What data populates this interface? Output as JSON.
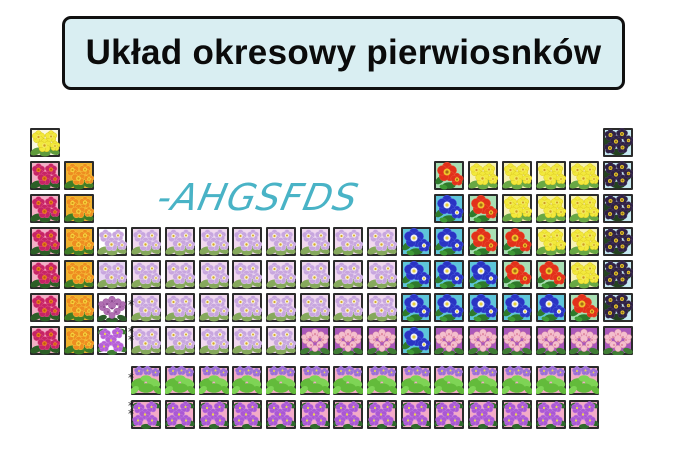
{
  "title": {
    "text": "Układ okresowy pierwiosnków",
    "bg_color": "#d9eef2",
    "border_color": "#101010"
  },
  "watermark": {
    "text": "-AHGSFDS",
    "color": "#49b3c6"
  },
  "flower_types": {
    "yellow_h": {
      "label": "yellow primrose on cream",
      "form": "primrose",
      "bg": "#fbf8df",
      "petal": "#f2e93c",
      "petal_edge": "#d9c41f",
      "center": "#f3e964",
      "center_dot": "#cf9b22",
      "leaf": "#5f9b3c"
    },
    "magenta": {
      "label": "magenta primrose on pink",
      "form": "primrose",
      "bg": "#f3b0c6",
      "petal": "#c62465",
      "petal_edge": "#e4508a",
      "center": "#ee7f1f",
      "center_dot": "#b85a0e",
      "leaf": "#2d5f27"
    },
    "orange": {
      "label": "orange primrose on amber",
      "form": "primrose",
      "bg": "#f0b12e",
      "petal": "#ee8d21",
      "petal_edge": "#f8c83e",
      "center": "#f6d53e",
      "center_dot": "#d9951c",
      "leaf": "#3f7d27"
    },
    "lavender": {
      "label": "pale lavender primrose on pink",
      "form": "primrose",
      "bg": "#f1d8ee",
      "petal": "#c8a6de",
      "petal_edge": "#e3cef1",
      "center": "#f7f2d9",
      "center_dot": "#d8a82a",
      "leaf": "#86a95c"
    },
    "lavender_white": {
      "label": "pale lavender primrose on white",
      "form": "primrose",
      "bg": "#ffffff",
      "petal": "#c8a6de",
      "petal_edge": "#e3cef1",
      "center": "#f7f2d9",
      "center_dot": "#d8a82a",
      "leaf": "#86a95c"
    },
    "lavender_lilac": {
      "label": "pale lavender primrose on lilac",
      "form": "primrose",
      "bg": "#e8d6f2",
      "petal": "#c8a6de",
      "petal_edge": "#e3cef1",
      "center": "#f7f2d9",
      "center_dot": "#d8a82a",
      "leaf": "#86a95c"
    },
    "blue": {
      "label": "royal blue primrose on turquoise",
      "form": "single",
      "bg": "#5ec5d9",
      "petal": "#2a34c3",
      "petal_edge": "#4b5ae2",
      "center": "#eef0f4",
      "center_dot": "#e8cf3a",
      "leaf": "#2e7a2b",
      "leaf2": "#3f9a35"
    },
    "red": {
      "label": "red primrose on light green",
      "form": "single",
      "bg": "#a9dfb4",
      "petal": "#e2311b",
      "petal_edge": "#f05538",
      "center": "#f0c32b",
      "center_dot": "#a86a14",
      "leaf": "#2e7a2b",
      "leaf2": "#3f9a35"
    },
    "yellow": {
      "label": "yellow primrose on pale yellow",
      "form": "primrose",
      "bg": "#f7f2b3",
      "petal": "#f2e93c",
      "petal_edge": "#ddc922",
      "center": "#f3e964",
      "center_dot": "#cf9b22",
      "leaf": "#69a844"
    },
    "dark": {
      "label": "dark purple auricula on pale cyan",
      "form": "multi",
      "bg": "#c5e9f0",
      "petal": "#2e2142",
      "petal_edge": "#493866",
      "center": "#e5c32f",
      "center_dot": "#8a6d12",
      "leaf": "#23421f"
    },
    "pink_cluster": {
      "label": "pink cluster primula on purple",
      "form": "cluster",
      "bg": "#aa58ba",
      "petal": "#f4bfcd",
      "petal_edge": "#e897ae",
      "center": "#d8758f",
      "leaf": "#3f7d34"
    },
    "hydrangea": {
      "label": "mauve flower ball on white",
      "form": "cluster",
      "bg": "#fdfdfd",
      "petal": "#b06fb2",
      "petal_edge": "#9a559c",
      "center": "#7d3f82",
      "leaf": "#2c5c2a"
    },
    "violet": {
      "label": "bright violet primrose on white",
      "form": "spray",
      "bg": "#fdfaff",
      "petal": "#b55fd6",
      "petal_edge": "#cf8ae8",
      "center": "#ead650",
      "leaf": "#3f7d34"
    },
    "green_leafy": {
      "label": "leafy primula with violet blooms on pink",
      "form": "leafy",
      "bg": "#f1aac6",
      "petal": "#9b6fd4",
      "petal_edge": "#b48ae0",
      "center": "#ead650",
      "leaf": "#63bb3b",
      "leaf2": "#7ed455"
    },
    "violet_pink": {
      "label": "violet primula on pink",
      "form": "spray",
      "bg": "#f3abc7",
      "petal": "#aa58d4",
      "petal_edge": "#c27fe2",
      "center": "#ead650",
      "leaf": "#2f6b2c"
    }
  },
  "periodic_table": {
    "columns": 18,
    "rows": [
      {
        "name": "period-1",
        "marker": "",
        "cells": [
          "1:yellow_h",
          "18:dark"
        ]
      },
      {
        "name": "period-2",
        "marker": "",
        "cells": [
          "1:magenta",
          "2:orange",
          "13:red",
          "14-17:yellow",
          "18:dark"
        ]
      },
      {
        "name": "period-3",
        "marker": "",
        "cells": [
          "1:magenta",
          "2:orange",
          "13:blue",
          "14:red",
          "15-17:yellow",
          "18:dark"
        ]
      },
      {
        "name": "period-4",
        "marker": "",
        "cells": [
          "1:magenta",
          "2:orange",
          "3:lavender_white",
          "4-11:lavender",
          "12-13:blue",
          "14-15:red",
          "16-17:yellow",
          "18:dark"
        ]
      },
      {
        "name": "period-5",
        "marker": "",
        "cells": [
          "1:magenta",
          "2:orange",
          "3:lavender_lilac",
          "4-11:lavender",
          "12-14:blue",
          "15-16:red",
          "17:yellow",
          "18:dark"
        ]
      },
      {
        "name": "period-6",
        "marker": "*",
        "cells": [
          "1:magenta",
          "2:orange",
          "3:hydrangea",
          "4-11:lavender",
          "12-16:blue",
          "17:red",
          "18:dark"
        ]
      },
      {
        "name": "period-7",
        "marker": "**",
        "cells": [
          "1:magenta",
          "2:orange",
          "3:violet",
          "4-8:lavender",
          "9-11:pink_cluster",
          "12:blue",
          "13-18:pink_cluster"
        ]
      },
      {
        "name": "lanthanide-row",
        "marker": "*",
        "cells": [
          "4-17:green_leafy"
        ]
      },
      {
        "name": "actinide-row",
        "marker": "**",
        "cells": [
          "4-17:violet_pink"
        ]
      }
    ]
  }
}
